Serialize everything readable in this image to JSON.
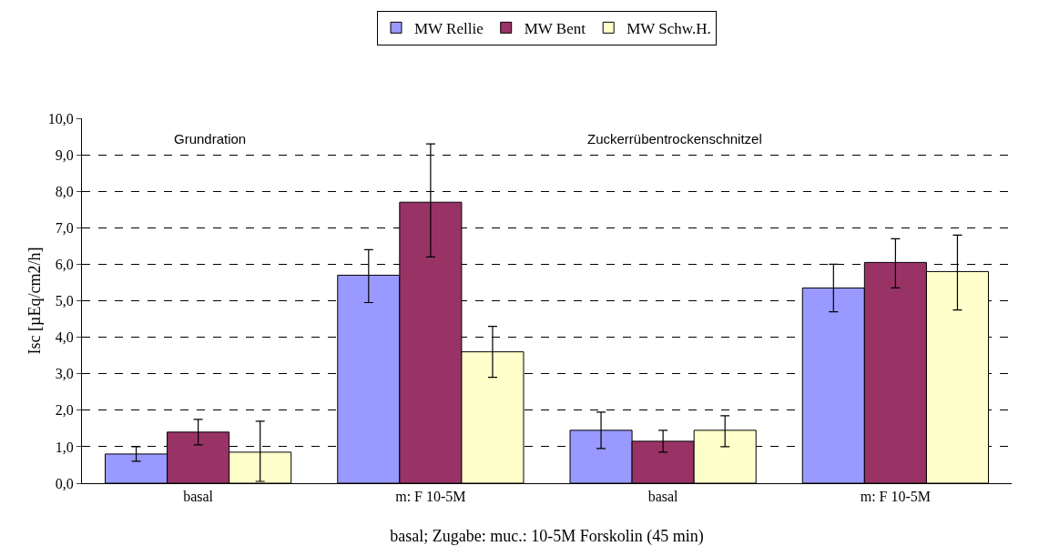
{
  "chart_data": {
    "type": "bar",
    "xlabel": "basal; Zugabe: muc.: 10-5M Forskolin (45 min)",
    "ylabel": "Isc [µEq/cm2/h]",
    "categories": [
      "basal",
      "m: F 10-5M",
      "basal",
      "m: F 10-5M"
    ],
    "series": [
      {
        "name": "MW Rellie",
        "color": "#9999ff",
        "values": [
          0.8,
          5.7,
          1.45,
          5.35
        ],
        "errors": [
          [
            0.6,
            1.0
          ],
          [
            4.95,
            6.4
          ],
          [
            0.95,
            1.95
          ],
          [
            4.7,
            6.0
          ]
        ]
      },
      {
        "name": "MW Bent",
        "color": "#993366",
        "values": [
          1.4,
          7.7,
          1.15,
          6.05
        ],
        "errors": [
          [
            1.05,
            1.75
          ],
          [
            6.2,
            9.3
          ],
          [
            0.85,
            1.45
          ],
          [
            5.35,
            6.7
          ]
        ]
      },
      {
        "name": "MW Schw.H.",
        "color": "#ffffcc",
        "values": [
          0.85,
          3.6,
          1.45,
          5.8
        ],
        "errors": [
          [
            0.05,
            1.7
          ],
          [
            2.9,
            4.3
          ],
          [
            1.0,
            1.85
          ],
          [
            4.75,
            6.8
          ]
        ]
      }
    ],
    "ylim": [
      0,
      10
    ],
    "yticks": [
      {
        "value": 0,
        "label": "0,0"
      },
      {
        "value": 1,
        "label": "1,0"
      },
      {
        "value": 2,
        "label": "2,0"
      },
      {
        "value": 3,
        "label": "3,0"
      },
      {
        "value": 4,
        "label": "4,0"
      },
      {
        "value": 5,
        "label": "5,0"
      },
      {
        "value": 6,
        "label": "6,0"
      },
      {
        "value": 7,
        "label": "7,0"
      },
      {
        "value": 8,
        "label": "8,0"
      },
      {
        "value": 9,
        "label": "9,0"
      },
      {
        "value": 10,
        "label": "10,0"
      }
    ],
    "grid": "y",
    "legend": "top",
    "annotations": [
      "Grundration",
      "Zuckerrübentrockenschnitzel"
    ]
  }
}
